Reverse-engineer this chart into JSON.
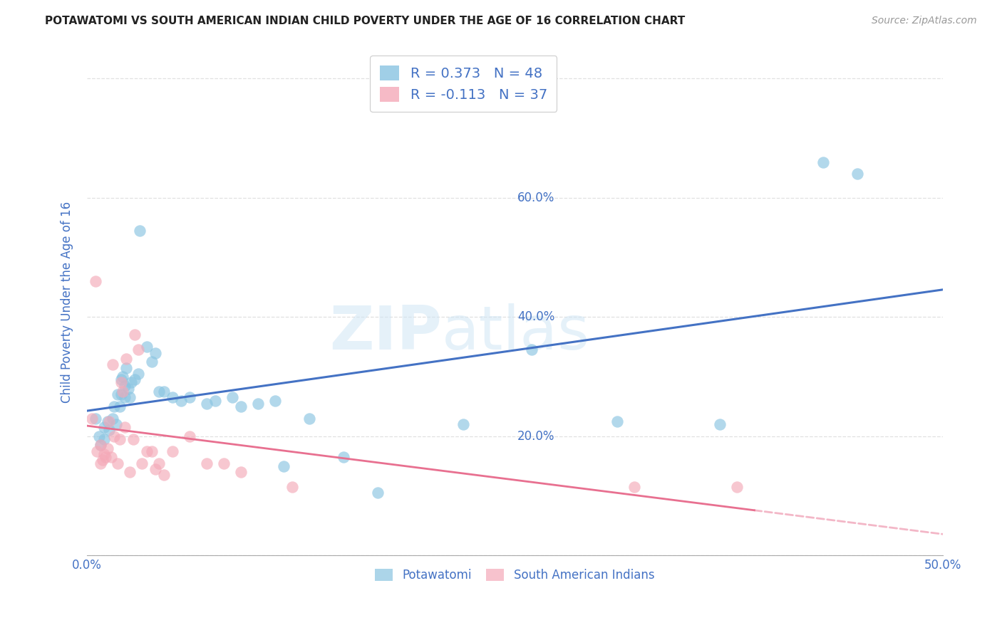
{
  "title": "POTAWATOMI VS SOUTH AMERICAN INDIAN CHILD POVERTY UNDER THE AGE OF 16 CORRELATION CHART",
  "source": "Source: ZipAtlas.com",
  "ylabel": "Child Poverty Under the Age of 16",
  "xlim": [
    0,
    0.5
  ],
  "ylim": [
    0,
    0.85
  ],
  "blue_color": "#89c4e1",
  "pink_color": "#f4a9b8",
  "blue_line_color": "#4472c4",
  "pink_line_color": "#e87090",
  "legend_blue_label": "R = 0.373   N = 48",
  "legend_pink_label": "R = -0.113   N = 37",
  "legend_blue_group": "Potawatomi",
  "legend_pink_group": "South American Indians",
  "watermark_zip": "ZIP",
  "watermark_atlas": "atlas",
  "background_color": "#ffffff",
  "grid_color": "#dddddd",
  "title_color": "#222222",
  "axis_label_color": "#4472c4",
  "tick_label_color": "#4472c4",
  "legend_text_color": "#4472c4",
  "blue_scatter_x": [
    0.005,
    0.007,
    0.008,
    0.01,
    0.01,
    0.012,
    0.013,
    0.015,
    0.016,
    0.017,
    0.018,
    0.019,
    0.02,
    0.02,
    0.021,
    0.022,
    0.022,
    0.023,
    0.024,
    0.025,
    0.026,
    0.028,
    0.03,
    0.031,
    0.035,
    0.038,
    0.04,
    0.042,
    0.045,
    0.05,
    0.055,
    0.06,
    0.07,
    0.075,
    0.085,
    0.09,
    0.1,
    0.11,
    0.115,
    0.13,
    0.15,
    0.17,
    0.22,
    0.26,
    0.31,
    0.37,
    0.43,
    0.45
  ],
  "blue_scatter_y": [
    0.23,
    0.2,
    0.185,
    0.215,
    0.195,
    0.225,
    0.21,
    0.23,
    0.25,
    0.22,
    0.27,
    0.25,
    0.27,
    0.295,
    0.3,
    0.285,
    0.265,
    0.315,
    0.28,
    0.265,
    0.29,
    0.295,
    0.305,
    0.545,
    0.35,
    0.325,
    0.34,
    0.275,
    0.275,
    0.265,
    0.26,
    0.265,
    0.255,
    0.26,
    0.265,
    0.25,
    0.255,
    0.26,
    0.15,
    0.23,
    0.165,
    0.105,
    0.22,
    0.345,
    0.225,
    0.22,
    0.66,
    0.64
  ],
  "pink_scatter_x": [
    0.003,
    0.005,
    0.006,
    0.008,
    0.008,
    0.009,
    0.01,
    0.011,
    0.012,
    0.013,
    0.014,
    0.015,
    0.016,
    0.018,
    0.019,
    0.02,
    0.021,
    0.022,
    0.023,
    0.025,
    0.027,
    0.028,
    0.03,
    0.032,
    0.035,
    0.038,
    0.04,
    0.042,
    0.045,
    0.05,
    0.06,
    0.07,
    0.08,
    0.09,
    0.12,
    0.32,
    0.38
  ],
  "pink_scatter_y": [
    0.23,
    0.46,
    0.175,
    0.185,
    0.155,
    0.16,
    0.17,
    0.165,
    0.18,
    0.225,
    0.165,
    0.32,
    0.2,
    0.155,
    0.195,
    0.29,
    0.275,
    0.215,
    0.33,
    0.14,
    0.195,
    0.37,
    0.345,
    0.155,
    0.175,
    0.175,
    0.145,
    0.155,
    0.135,
    0.175,
    0.2,
    0.155,
    0.155,
    0.14,
    0.115,
    0.115,
    0.115
  ]
}
